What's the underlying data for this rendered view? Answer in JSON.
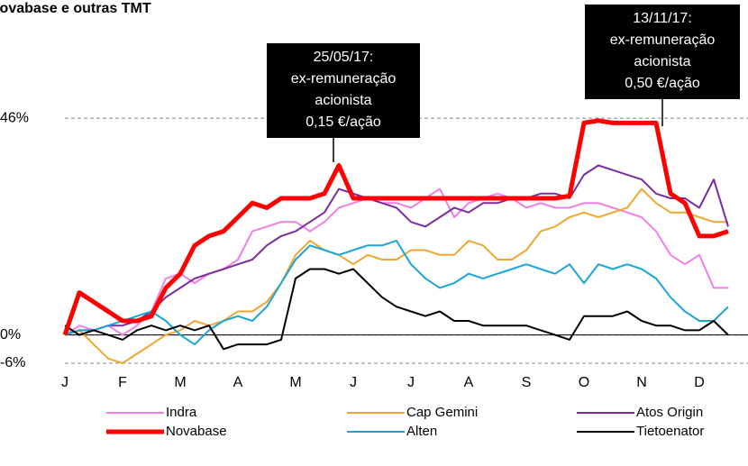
{
  "chart_data": {
    "type": "line",
    "title": "Novabase e outras TMT",
    "annotations": [
      {
        "lines": [
          "25/05/17:",
          "ex-remuneração",
          "acionista",
          "0,15 €/ação"
        ]
      },
      {
        "lines": [
          "13/11/17:",
          "ex-remuneração",
          "acionista",
          "0,50 €/ação"
        ]
      }
    ],
    "x": [
      0,
      0.25,
      0.5,
      0.75,
      1,
      1.25,
      1.5,
      1.75,
      2,
      2.25,
      2.5,
      2.75,
      3,
      3.25,
      3.5,
      3.75,
      4,
      4.25,
      4.5,
      4.75,
      5,
      5.25,
      5.5,
      5.75,
      6,
      6.25,
      6.5,
      6.75,
      7,
      7.25,
      7.5,
      7.75,
      8,
      8.25,
      8.5,
      8.75,
      9,
      9.25,
      9.5,
      9.75,
      10,
      10.25,
      10.5,
      10.75,
      11,
      11.25,
      11.5
    ],
    "xlim": [
      0,
      11.5
    ],
    "xticks": [
      {
        "value": 0,
        "label": "J"
      },
      {
        "value": 1,
        "label": "F"
      },
      {
        "value": 2,
        "label": "M"
      },
      {
        "value": 3,
        "label": "A"
      },
      {
        "value": 4,
        "label": "M"
      },
      {
        "value": 5,
        "label": "J"
      },
      {
        "value": 6,
        "label": "J"
      },
      {
        "value": 7,
        "label": "A"
      },
      {
        "value": 8,
        "label": "S"
      },
      {
        "value": 9,
        "label": "O"
      },
      {
        "value": 10,
        "label": "N"
      },
      {
        "value": 11,
        "label": "D"
      }
    ],
    "ylim": [
      -6,
      60
    ],
    "yticks": [
      {
        "value": -6,
        "label": "-6%"
      },
      {
        "value": 0,
        "label": "0%"
      },
      {
        "value": 46,
        "label": "46%"
      }
    ],
    "grid": true,
    "series": [
      {
        "name": "Indra",
        "color": "#f27ee6",
        "values": [
          0,
          2,
          1,
          2,
          0,
          2,
          5,
          12,
          13,
          11,
          13,
          14,
          16,
          22,
          23,
          24,
          24,
          22,
          24,
          27,
          28,
          29,
          28,
          28,
          27,
          29,
          31,
          25,
          28,
          29,
          30,
          29,
          27,
          28,
          27,
          27,
          28,
          28,
          27,
          26,
          25,
          22,
          17,
          15,
          17,
          10,
          10
        ]
      },
      {
        "name": "Cap Gemini",
        "color": "#f0a830",
        "values": [
          0,
          1,
          -2,
          -5,
          -6,
          -4,
          -2,
          0,
          1,
          3,
          2,
          3,
          5,
          5,
          7,
          11,
          17,
          20,
          18,
          17,
          15,
          17,
          16,
          16,
          18,
          18,
          17,
          17,
          20,
          19,
          16,
          16,
          18,
          22,
          23,
          25,
          26,
          25,
          26,
          27,
          31,
          28,
          26,
          26,
          25,
          24,
          24
        ]
      },
      {
        "name": "Atos Origin",
        "color": "#7b2c9e",
        "values": [
          0,
          1,
          1,
          2,
          2,
          3,
          5,
          8,
          10,
          12,
          13,
          14,
          15,
          16,
          19,
          21,
          22,
          24,
          26,
          31,
          30,
          29,
          28,
          27,
          24,
          23,
          25,
          27,
          26,
          28,
          28,
          29,
          29,
          30,
          30,
          29,
          34,
          36,
          35,
          34,
          33,
          30,
          29,
          29,
          27,
          33,
          23
        ]
      },
      {
        "name": "Novabase",
        "color": "#ff0000",
        "values": [
          0,
          9,
          7,
          5,
          3,
          3,
          4,
          10,
          13,
          19,
          21,
          22,
          25,
          28,
          27,
          29,
          29,
          29,
          30,
          36,
          29,
          29,
          29,
          29,
          29,
          29,
          29,
          29,
          29,
          29,
          29,
          29,
          29,
          29,
          29,
          29.5,
          45,
          45.5,
          45,
          45,
          45,
          45,
          30,
          28,
          21,
          21,
          22
        ]
      },
      {
        "name": "Alten",
        "color": "#1aa6d6",
        "values": [
          0,
          1,
          1,
          2,
          3,
          4,
          5,
          3,
          0,
          -2,
          1,
          3,
          4,
          3,
          6,
          11,
          16,
          19,
          18,
          17,
          18,
          19,
          19,
          20,
          15,
          12,
          10,
          11,
          13,
          12,
          13,
          14,
          15,
          14,
          13,
          15,
          11,
          15,
          14,
          15,
          14,
          12,
          8,
          5,
          3,
          3,
          6
        ]
      },
      {
        "name": "Tietoenator",
        "color": "#000000",
        "values": [
          2,
          0,
          1,
          0,
          -1,
          1,
          2,
          1,
          2,
          1,
          2,
          -3,
          -2,
          -2,
          -2,
          -1,
          12,
          14,
          14,
          13,
          14,
          11,
          8,
          6,
          5,
          4,
          5,
          3,
          3,
          2,
          2,
          2,
          2,
          1,
          0,
          -1,
          4,
          4,
          4,
          5,
          3,
          2,
          2,
          1,
          1,
          3,
          0
        ]
      }
    ]
  }
}
